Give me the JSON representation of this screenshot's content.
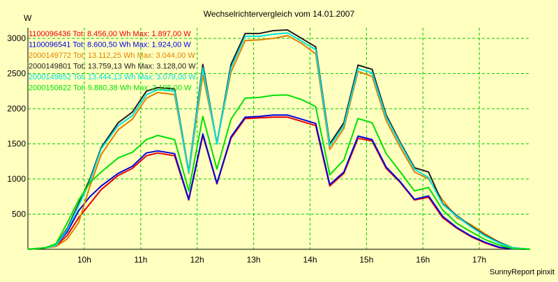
{
  "chart_data": {
    "type": "line",
    "title": "Wechselrichtervergleich vom 14.01.2007",
    "ylabel": "W",
    "xlabel": "",
    "credit": "SunnyReport pinxit",
    "ylim": [
      0,
      3150
    ],
    "xlim": [
      9.0,
      17.9
    ],
    "yticks": [
      500,
      1000,
      1500,
      2000,
      2500,
      3000
    ],
    "ytick_labels": [
      "500",
      "1000",
      "1500",
      "2000",
      "2500",
      "3000"
    ],
    "xticks": [
      10,
      11,
      12,
      13,
      14,
      15,
      16,
      17
    ],
    "xtick_labels": [
      "10h",
      "11h",
      "12h",
      "13h",
      "14h",
      "15h",
      "16h",
      "17h"
    ],
    "grid": true,
    "legend_position": "top-left",
    "x": [
      9.0,
      9.3,
      9.5,
      9.7,
      9.9,
      10.1,
      10.3,
      10.6,
      10.85,
      11.1,
      11.3,
      11.6,
      11.85,
      12.1,
      12.35,
      12.6,
      12.85,
      13.1,
      13.35,
      13.6,
      13.85,
      14.1,
      14.35,
      14.6,
      14.85,
      15.1,
      15.35,
      15.6,
      15.85,
      16.1,
      16.35,
      16.6,
      16.85,
      17.1,
      17.35,
      17.6,
      17.9
    ],
    "series": [
      {
        "name": "1100096436",
        "label": "1100096436 Tot: 8.456,00 Wh Max: 1.897,00 W",
        "color": "#e80000",
        "values": [
          0,
          20,
          50,
          200,
          450,
          650,
          850,
          1050,
          1150,
          1330,
          1370,
          1330,
          700,
          1620,
          930,
          1580,
          1860,
          1870,
          1880,
          1880,
          1820,
          1760,
          900,
          1080,
          1580,
          1540,
          1150,
          950,
          700,
          740,
          450,
          300,
          180,
          90,
          25,
          5,
          0
        ]
      },
      {
        "name": "1100096541",
        "label": "1100096541 Tot: 8.600,50 Wh Max: 1.924,00 W",
        "color": "#0000e0",
        "values": [
          0,
          20,
          60,
          250,
          550,
          750,
          900,
          1080,
          1180,
          1370,
          1400,
          1360,
          710,
          1640,
          940,
          1600,
          1880,
          1890,
          1910,
          1910,
          1850,
          1790,
          920,
          1100,
          1610,
          1560,
          1170,
          960,
          710,
          760,
          470,
          310,
          190,
          100,
          30,
          5,
          0
        ]
      },
      {
        "name": "2000149772",
        "label": "2000149772 Tot: 13.112,25 Wh Max: 3.044,00 W",
        "color": "#e08000",
        "values": [
          0,
          20,
          40,
          150,
          380,
          900,
          1350,
          1700,
          1850,
          2150,
          2230,
          2200,
          1080,
          2480,
          1520,
          2520,
          2970,
          2980,
          3000,
          3040,
          2930,
          2780,
          1420,
          1720,
          2530,
          2460,
          1830,
          1450,
          1100,
          1000,
          700,
          450,
          350,
          220,
          100,
          20,
          0
        ]
      },
      {
        "name": "2000149801",
        "label": "2000149801 Tot: 13.759,13 Wh Max: 3.128,00 W",
        "color": "#202020",
        "values": [
          0,
          20,
          60,
          300,
          650,
          1000,
          1450,
          1800,
          1950,
          2250,
          2300,
          2280,
          1100,
          2630,
          1500,
          2630,
          3070,
          3070,
          3110,
          3120,
          3000,
          2880,
          1500,
          1800,
          2620,
          2560,
          1910,
          1520,
          1160,
          1100,
          650,
          480,
          330,
          200,
          100,
          20,
          0
        ]
      },
      {
        "name": "2000149852",
        "label": "2000149852 Tot: 13.444,13 Wh Max: 3.079,00 W",
        "color": "#00e0e0",
        "values": [
          0,
          20,
          55,
          280,
          620,
          970,
          1430,
          1760,
          1900,
          2200,
          2270,
          2250,
          1090,
          2580,
          1500,
          2580,
          3030,
          3030,
          3060,
          3079,
          2960,
          2840,
          1470,
          1760,
          2570,
          2510,
          1880,
          1500,
          1140,
          1020,
          640,
          470,
          320,
          190,
          90,
          20,
          0
        ]
      },
      {
        "name": "2000150622",
        "label": "2000150622 Tot: 9.880,38 Wh Max: 2.195,00 W",
        "color": "#00e000",
        "values": [
          0,
          20,
          80,
          380,
          700,
          950,
          1100,
          1300,
          1380,
          1560,
          1620,
          1560,
          830,
          1890,
          1140,
          1850,
          2150,
          2160,
          2190,
          2195,
          2130,
          2030,
          1060,
          1270,
          1860,
          1800,
          1360,
          1100,
          830,
          880,
          560,
          370,
          250,
          140,
          60,
          10,
          0
        ]
      }
    ]
  }
}
